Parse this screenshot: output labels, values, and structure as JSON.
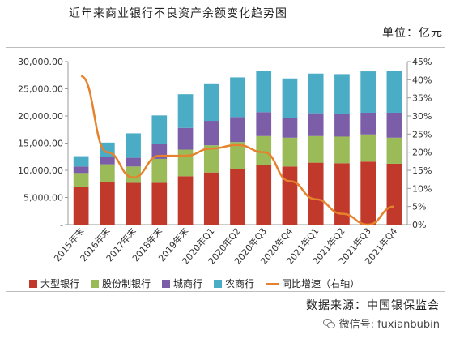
{
  "title": "近年来商业银行不良资产余额变化趋势图",
  "unit": "单位：亿元",
  "source": "数据来源：中国银保监会",
  "watermark": "微信号: fuxianbubin",
  "chart_data": {
    "type": "bar",
    "stacked": true,
    "categories": [
      "2015年末",
      "2016年末",
      "2017年末",
      "2018年末",
      "2019年末",
      "2020年Q1",
      "2020年Q2",
      "2020年Q3",
      "2020年Q4",
      "2021年Q1",
      "2021年Q2",
      "2021年Q3",
      "2021年Q4"
    ],
    "series": [
      {
        "name": "大型银行",
        "color": "#c0392b",
        "values": [
          7000,
          7800,
          7700,
          7700,
          8900,
          9600,
          10200,
          10900,
          10700,
          11400,
          11300,
          11600,
          11200
        ]
      },
      {
        "name": "股份制银行",
        "color": "#9bbb59",
        "values": [
          2500,
          3300,
          3000,
          4400,
          4900,
          5000,
          5000,
          5400,
          5300,
          4900,
          4900,
          5000,
          4800
        ]
      },
      {
        "name": "城商行",
        "color": "#7b5ea7",
        "values": [
          1200,
          1400,
          1600,
          2800,
          4000,
          4500,
          4600,
          4400,
          3700,
          4200,
          4100,
          4000,
          4600
        ]
      },
      {
        "name": "农商行",
        "color": "#4bacc6",
        "values": [
          1900,
          2600,
          4500,
          5200,
          6200,
          6900,
          7300,
          7600,
          7200,
          7300,
          7400,
          7600,
          7700
        ]
      }
    ],
    "line": {
      "name": "同比增速（右轴）",
      "color": "#e6822e",
      "values": [
        0.41,
        0.2,
        0.13,
        0.19,
        0.19,
        0.21,
        0.22,
        0.2,
        0.12,
        0.07,
        0.03,
        0.0,
        0.05
      ]
    },
    "y_left": {
      "min": 0,
      "max": 30000,
      "step": 5000,
      "ticks": [
        "-",
        "5,000.00",
        "10,000.00",
        "15,000.00",
        "20,000.00",
        "25,000.00",
        "30,000.00"
      ]
    },
    "y_right": {
      "min": 0,
      "max": 0.45,
      "step": 0.05,
      "ticks": [
        "0%",
        "5%",
        "10%",
        "15%",
        "20%",
        "25%",
        "30%",
        "35%",
        "40%",
        "45%"
      ]
    },
    "legend_position": "bottom",
    "grid": false
  }
}
